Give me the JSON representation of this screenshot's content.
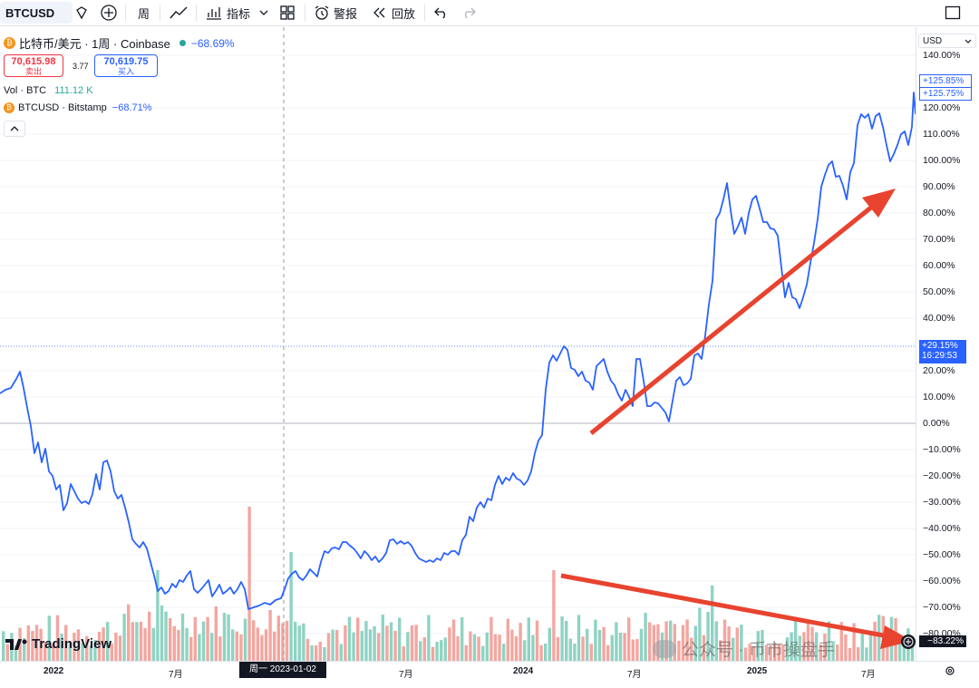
{
  "toolbar": {
    "symbol": "BTCUSD",
    "interval": "周",
    "indicators": "指标",
    "alert": "警报",
    "replay": "回放"
  },
  "legend": {
    "main": "比特币/美元 · 1周 · Coinbase",
    "main_change": "−68.69%",
    "sell_price": "70,615.98",
    "sell_label": "卖出",
    "spread": "3.77",
    "buy_price": "70,619.75",
    "buy_label": "买入",
    "vol_label": "Vol · BTC",
    "vol_value": "111.12 K",
    "compare_label": "BTCUSD · Bitstamp",
    "compare_change": "−68.71%"
  },
  "axis": {
    "currency": "USD",
    "ticks": [
      "140.00%",
      "120.00%",
      "110.00%",
      "100.00%",
      "90.00%",
      "80.00%",
      "70.00%",
      "60.00%",
      "50.00%",
      "40.00%",
      "20.00%",
      "10.00%",
      "0.00%",
      "−10.00%",
      "−20.00%",
      "−30.00%",
      "−40.00%",
      "−50.00%",
      "−60.00%",
      "−70.00%",
      "−80.00%"
    ],
    "badge_top1": "+125.85%",
    "badge_top2": "+125.75%",
    "badge_mid_value": "+29.15%",
    "badge_mid_time": "16:29:53",
    "badge_bottom": "−83.22%"
  },
  "xaxis": {
    "labels": [
      "2022",
      "7月",
      "7月",
      "2024",
      "7月",
      "2025",
      "7月"
    ],
    "cursor_label": "周一 2023-01-02"
  },
  "branding": {
    "logo": "TradingView",
    "watermark": "公众号 · 币市操盘手"
  },
  "colors": {
    "line": "#2962ff",
    "arrow": "#e8432f",
    "vol_up": "#8fd3c3",
    "vol_down": "#f3a6a0"
  }
}
